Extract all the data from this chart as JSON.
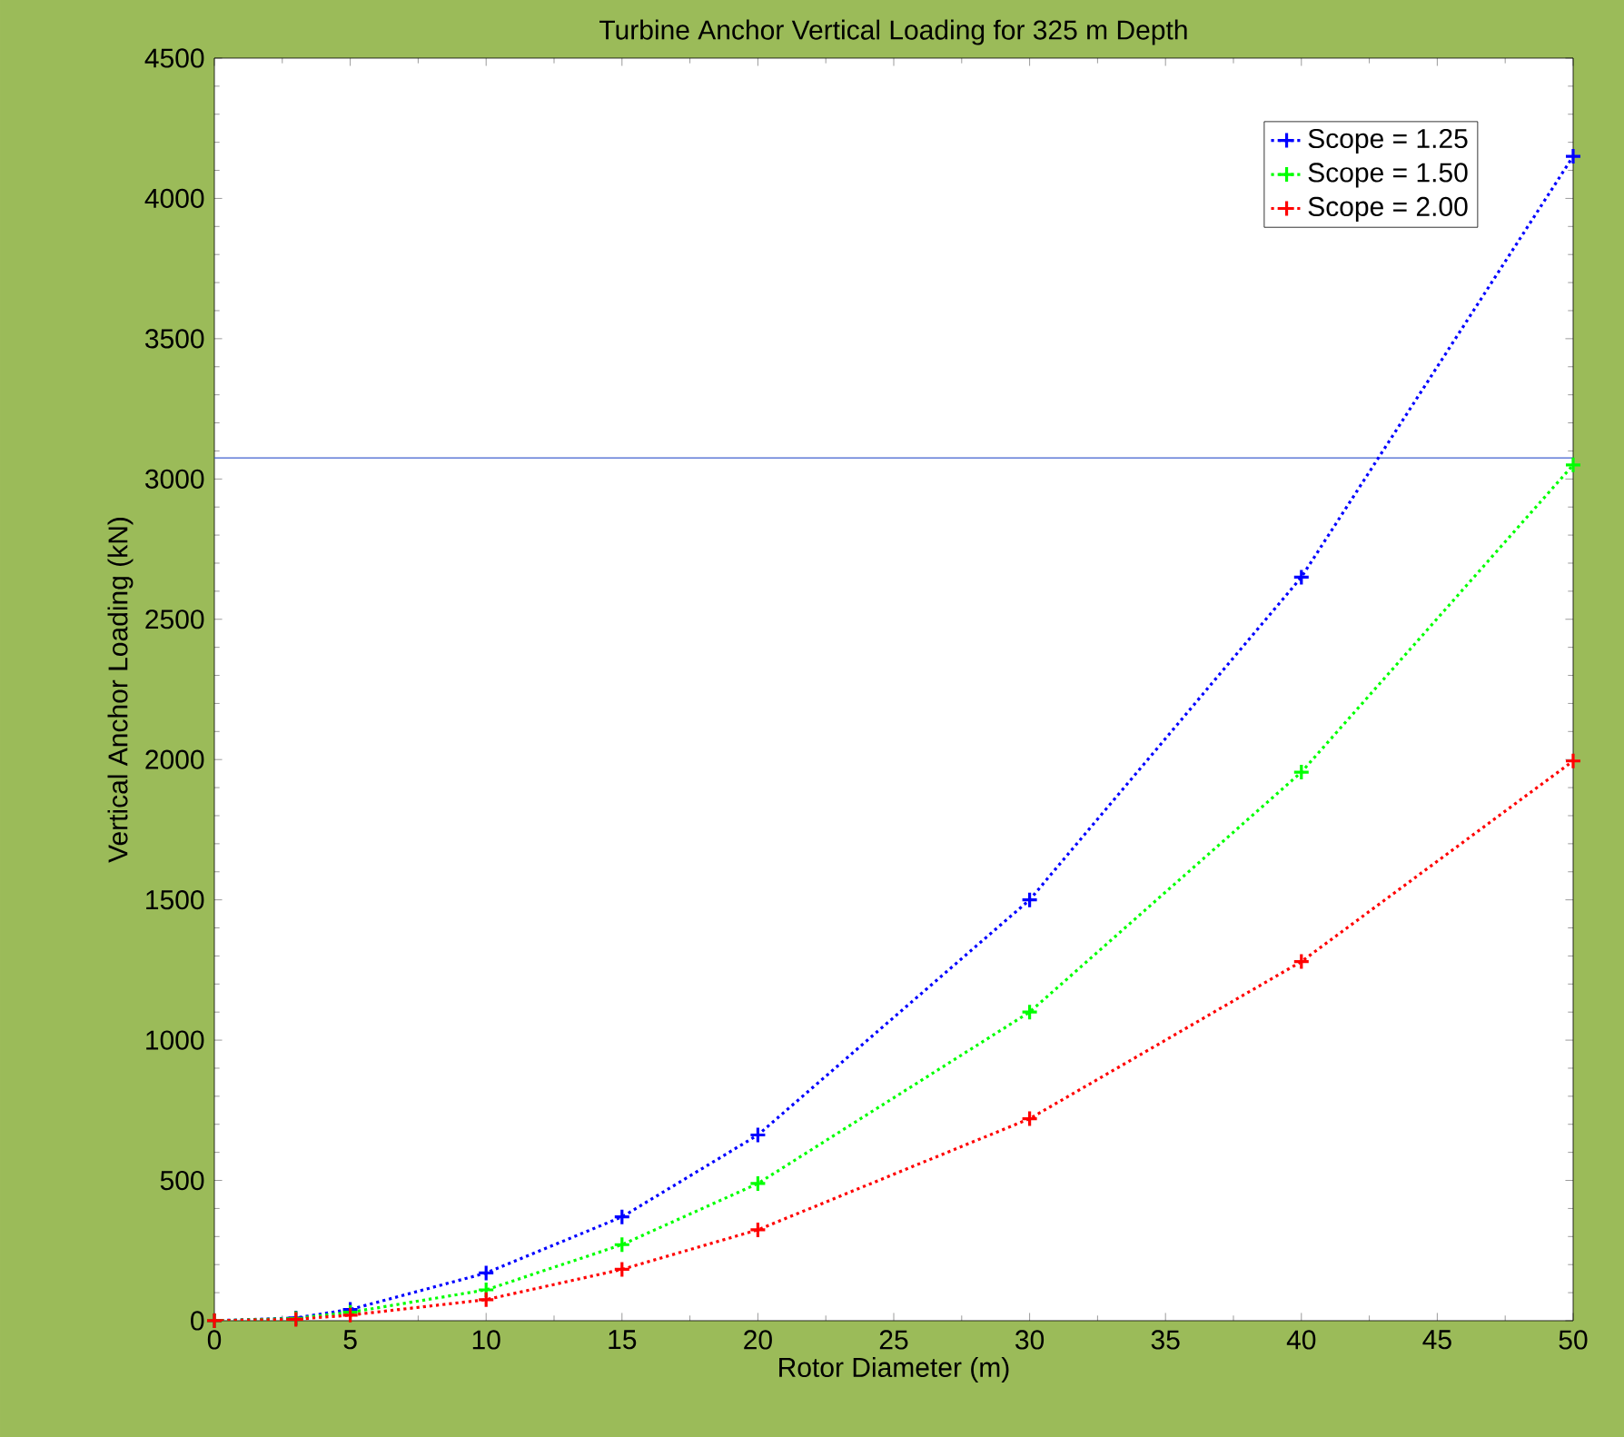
{
  "chart_data": {
    "type": "line",
    "title": "Turbine Anchor Vertical Loading for 325 m Depth",
    "xlabel": "Rotor Diameter (m)",
    "ylabel": "Vertical Anchor Loading (kN)",
    "x": [
      0,
      3,
      5,
      10,
      15,
      20,
      30,
      40,
      50
    ],
    "series": [
      {
        "name": "Scope = 1.25",
        "color": "#0000ff",
        "values": [
          0,
          10,
          40,
          170,
          370,
          662,
          1500,
          2650,
          4150
        ]
      },
      {
        "name": "Scope = 1.50",
        "color": "#00ff00",
        "values": [
          0,
          8,
          30,
          110,
          271,
          489,
          1100,
          1955,
          3050
        ]
      },
      {
        "name": "Scope = 2.00",
        "color": "#ff0000",
        "values": [
          0,
          5,
          20,
          75,
          183,
          324,
          720,
          1280,
          1995
        ]
      }
    ],
    "xlim": [
      0,
      50
    ],
    "ylim": [
      0,
      4500
    ],
    "xticks": [
      0,
      5,
      10,
      15,
      20,
      25,
      30,
      35,
      40,
      45,
      50
    ],
    "yticks": [
      0,
      500,
      1000,
      1500,
      2000,
      2500,
      3000,
      3500,
      4000,
      4500
    ],
    "ref_lines": [
      {
        "axis": "y",
        "value": 3075,
        "color": "#4060d0"
      }
    ],
    "legend": "top right",
    "marker": "cross",
    "line_style": "dotted",
    "grid": false
  }
}
